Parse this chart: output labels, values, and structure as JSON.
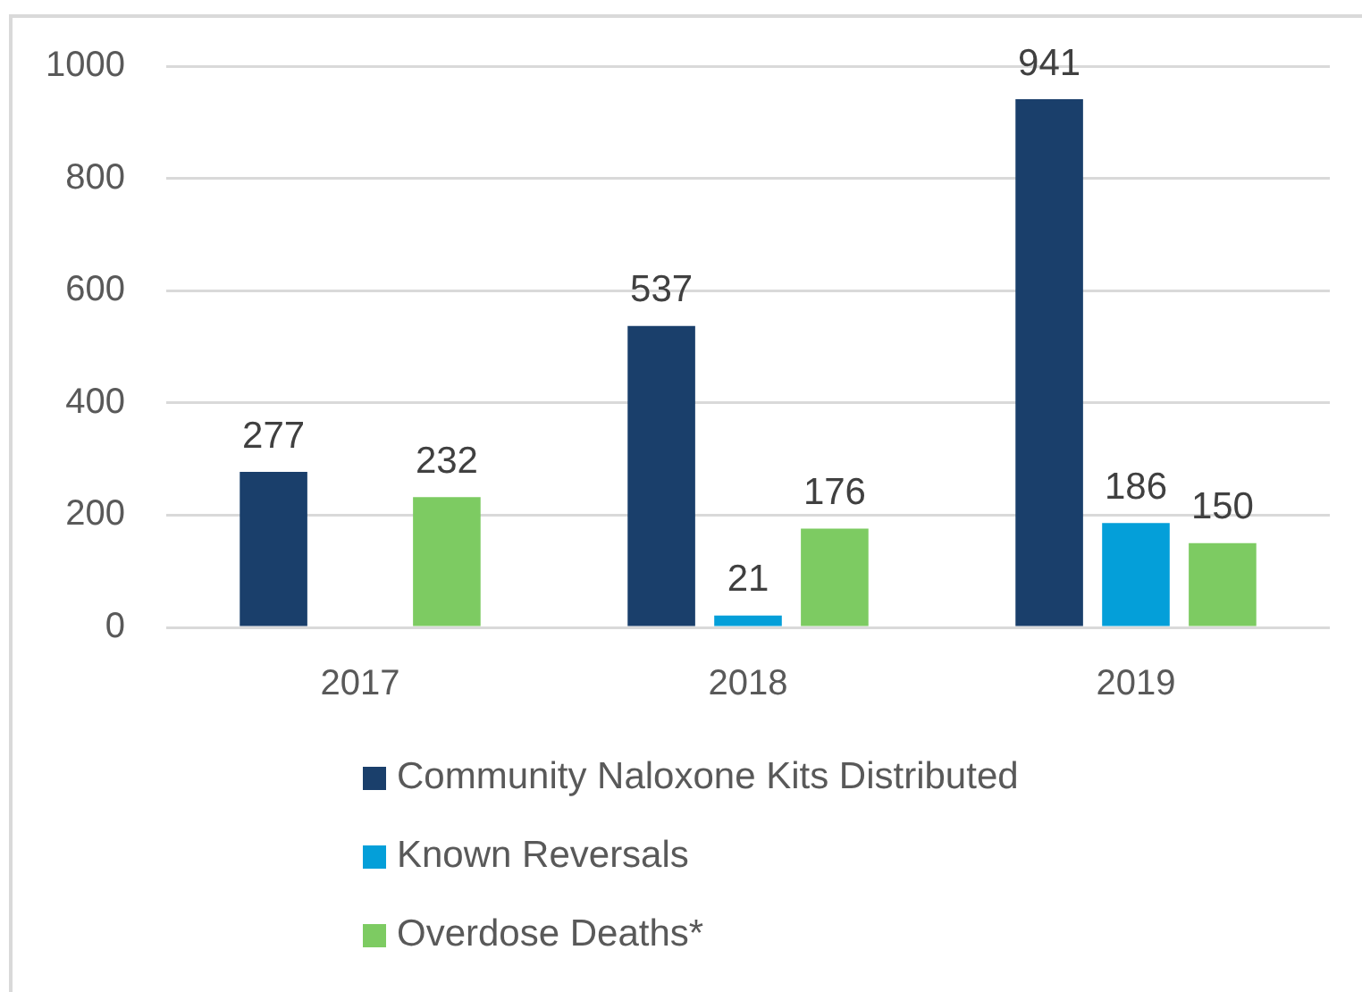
{
  "chart_data": {
    "type": "bar",
    "categories": [
      "2017",
      "2018",
      "2019"
    ],
    "series": [
      {
        "name": "Community Naloxone Kits Distributed",
        "color": "#1a3f6b",
        "values": [
          277,
          537,
          941
        ]
      },
      {
        "name": "Known Reversals",
        "color": "#049fd9",
        "values": [
          null,
          21,
          186
        ]
      },
      {
        "name": "Overdose Deaths*",
        "color": "#7dcb62",
        "values": [
          232,
          176,
          150
        ]
      }
    ],
    "ylim": [
      0,
      1000
    ],
    "yticks": [
      0,
      200,
      400,
      600,
      800,
      1000
    ],
    "grid": "y",
    "legend": "bottom",
    "data_labels": true
  }
}
